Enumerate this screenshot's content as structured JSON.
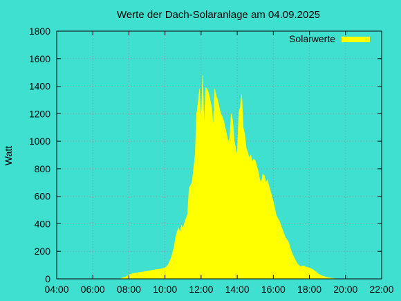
{
  "chart_data": {
    "type": "area",
    "title": "Werte der Dach-Solaranlage am 04.09.2025",
    "ylabel": "Watt",
    "xlabel": "",
    "xlim": [
      "04:00",
      "22:00"
    ],
    "ylim": [
      0,
      1800
    ],
    "x_ticks": [
      "04:00",
      "06:00",
      "08:00",
      "10:00",
      "12:00",
      "14:00",
      "16:00",
      "18:00",
      "20:00",
      "22:00"
    ],
    "y_ticks": [
      0,
      200,
      400,
      600,
      800,
      1000,
      1200,
      1400,
      1600,
      1800
    ],
    "grid": true,
    "legend_position": "top-right",
    "fill_color": "#ffff00",
    "background_color": "#40e0d0",
    "series": [
      {
        "name": "Solarwerte",
        "x": [
          "07:35",
          "07:50",
          "08:00",
          "08:15",
          "08:30",
          "08:45",
          "09:00",
          "09:15",
          "09:30",
          "09:45",
          "10:00",
          "10:10",
          "10:20",
          "10:30",
          "10:35",
          "10:40",
          "10:45",
          "10:50",
          "10:55",
          "11:00",
          "11:05",
          "11:10",
          "11:15",
          "11:20",
          "11:25",
          "11:30",
          "11:35",
          "11:40",
          "11:45",
          "11:50",
          "11:55",
          "12:00",
          "12:05",
          "12:10",
          "12:15",
          "12:20",
          "12:25",
          "12:30",
          "12:35",
          "12:40",
          "12:45",
          "12:50",
          "12:55",
          "13:00",
          "13:05",
          "13:10",
          "13:15",
          "13:20",
          "13:25",
          "13:30",
          "13:35",
          "13:40",
          "13:45",
          "13:50",
          "13:55",
          "14:00",
          "14:05",
          "14:10",
          "14:15",
          "14:20",
          "14:25",
          "14:30",
          "14:35",
          "14:40",
          "14:45",
          "14:50",
          "14:55",
          "15:00",
          "15:05",
          "15:10",
          "15:15",
          "15:20",
          "15:25",
          "15:30",
          "15:35",
          "15:40",
          "15:45",
          "15:50",
          "15:55",
          "16:00",
          "16:10",
          "16:20",
          "16:30",
          "16:40",
          "16:50",
          "17:00",
          "17:10",
          "17:20",
          "17:30",
          "17:40",
          "17:50",
          "18:00",
          "18:10",
          "18:20",
          "18:30",
          "18:45",
          "19:00",
          "19:15",
          "19:30",
          "19:40"
        ],
        "values": [
          5,
          15,
          30,
          40,
          45,
          50,
          55,
          62,
          68,
          72,
          80,
          100,
          150,
          230,
          300,
          340,
          370,
          340,
          390,
          370,
          410,
          440,
          470,
          660,
          680,
          700,
          800,
          900,
          1200,
          1280,
          1380,
          1150,
          1480,
          1100,
          1390,
          1380,
          1350,
          1300,
          1250,
          1100,
          1380,
          1330,
          1300,
          1250,
          1200,
          1180,
          1150,
          1100,
          1050,
          1000,
          1020,
          1200,
          1150,
          1000,
          950,
          900,
          1200,
          1250,
          1340,
          1100,
          1050,
          950,
          920,
          880,
          900,
          850,
          870,
          860,
          820,
          780,
          720,
          700,
          760,
          750,
          700,
          720,
          680,
          640,
          600,
          560,
          460,
          420,
          360,
          300,
          270,
          200,
          150,
          110,
          90,
          95,
          85,
          80,
          70,
          55,
          35,
          20,
          10,
          5,
          0,
          0
        ]
      }
    ]
  }
}
